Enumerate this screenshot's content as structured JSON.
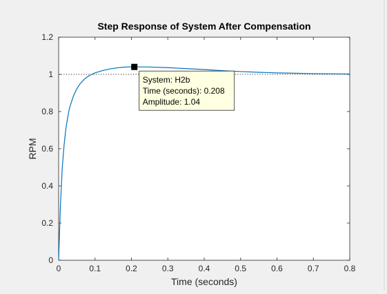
{
  "chart_data": {
    "type": "line",
    "title": "Step Response of System After Compensation",
    "xlabel": "Time (seconds)",
    "ylabel": "RPM",
    "xlim": [
      0,
      0.8
    ],
    "ylim": [
      0,
      1.2
    ],
    "xticks": [
      "0",
      "0.1",
      "0.2",
      "0.3",
      "0.4",
      "0.5",
      "0.6",
      "0.7",
      "0.8"
    ],
    "yticks": [
      "0",
      "0.2",
      "0.4",
      "0.6",
      "0.8",
      "1",
      "1.2"
    ],
    "grid": false,
    "reference_line": {
      "y": 1,
      "style": "dotted"
    },
    "series": [
      {
        "name": "H2b",
        "color": "#0072bd",
        "x": [
          0,
          0.005,
          0.01,
          0.015,
          0.02,
          0.025,
          0.03,
          0.04,
          0.05,
          0.06,
          0.07,
          0.08,
          0.09,
          0.1,
          0.12,
          0.14,
          0.16,
          0.18,
          0.2,
          0.208,
          0.22,
          0.25,
          0.3,
          0.35,
          0.4,
          0.45,
          0.5,
          0.55,
          0.6,
          0.65,
          0.7,
          0.75,
          0.8
        ],
        "y": [
          0,
          0.3,
          0.5,
          0.62,
          0.71,
          0.77,
          0.82,
          0.88,
          0.923,
          0.952,
          0.973,
          0.988,
          0.999,
          1.008,
          1.02,
          1.029,
          1.035,
          1.039,
          1.0405,
          1.0405,
          1.04,
          1.0395,
          1.036,
          1.031,
          1.026,
          1.02,
          1.015,
          1.011,
          1.008,
          1.006,
          1.004,
          1.003,
          1.002
        ]
      }
    ],
    "datatip": {
      "x": 0.208,
      "y": 1.04,
      "lines": [
        "System: H2b",
        "Time (seconds): 0.208",
        "Amplitude: 1.04"
      ]
    }
  }
}
